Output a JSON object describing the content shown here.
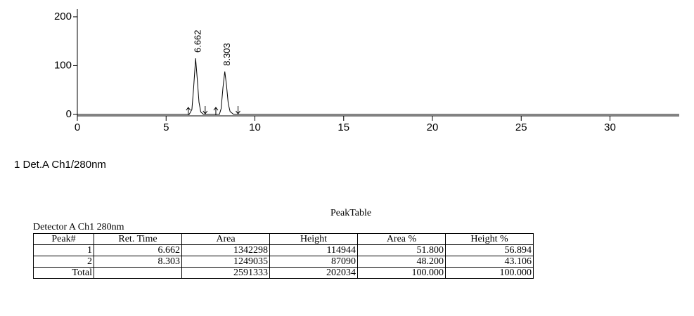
{
  "chart_data": {
    "type": "line",
    "x": [
      0,
      6.3,
      6.45,
      6.55,
      6.662,
      6.75,
      6.85,
      6.95,
      7.1,
      8.0,
      8.1,
      8.2,
      8.303,
      8.4,
      8.5,
      8.6,
      8.8,
      33.9
    ],
    "series": [
      {
        "name": "1 Det.A Ch1/280nm",
        "color": "#000000",
        "values": [
          0,
          0,
          10,
          55,
          115,
          75,
          25,
          5,
          0,
          0,
          12,
          55,
          88,
          60,
          22,
          6,
          0,
          0
        ]
      }
    ],
    "peaks": [
      6.662,
      8.303
    ],
    "event_marks": [
      6.25,
      7.2,
      7.8,
      9.05
    ],
    "xlim": [
      0,
      33.9
    ],
    "ylim": [
      -3,
      210
    ],
    "xticks": [
      0,
      5,
      10,
      15,
      20,
      25,
      30
    ],
    "yticks": [
      0,
      100,
      200
    ]
  },
  "table": {
    "title": "PeakTable",
    "caption": "Detector A Ch1 280nm",
    "header": [
      "Peak#",
      "Ret. Time",
      "Area",
      "Height",
      "Area %",
      "Height %"
    ],
    "rows": [
      [
        "1",
        "6.662",
        "1342298",
        "114944",
        "51.800",
        "56.894"
      ],
      [
        "2",
        "8.303",
        "1249035",
        "87090",
        "48.200",
        "43.106"
      ],
      [
        "Total",
        null,
        "2591333",
        "202034",
        "100.000",
        "100.000"
      ]
    ]
  }
}
